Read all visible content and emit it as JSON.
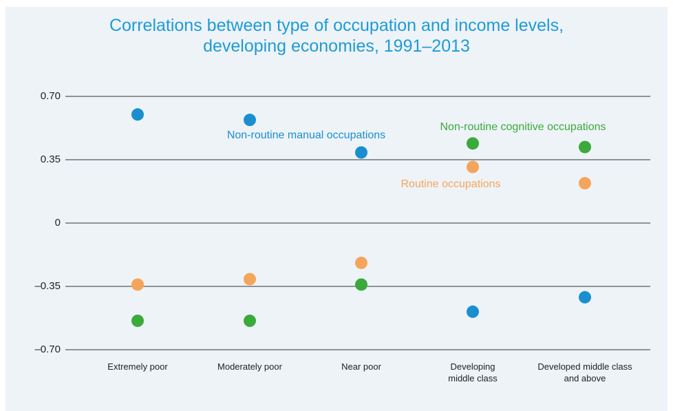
{
  "chart_data": {
    "type": "dot",
    "title": "Correlations between type of occupation and income levels,\ndeveloping economies, 1991–2013",
    "categories": [
      "Extremely poor",
      "Moderately poor",
      "Near poor",
      "Developing\nmiddle class",
      "Developed middle class\nand above"
    ],
    "series": [
      {
        "name": "Non-routine manual occupations",
        "color": "#1a8fd0",
        "values": [
          0.6,
          0.57,
          0.39,
          -0.49,
          -0.41
        ]
      },
      {
        "name": "Routine occupations",
        "color": "#f5a55a",
        "values": [
          -0.34,
          -0.31,
          -0.22,
          0.31,
          0.22
        ]
      },
      {
        "name": "Non-routine cognitive occupations",
        "color": "#3aaa3a",
        "values": [
          -0.54,
          -0.54,
          -0.34,
          0.44,
          0.42
        ]
      }
    ],
    "ylim": [
      -0.7,
      0.7
    ],
    "yticks": [
      {
        "value": 0.7,
        "label": "0.70"
      },
      {
        "value": 0.35,
        "label": "0.35"
      },
      0,
      {
        "value": -0.35,
        "label": "–0.35"
      },
      {
        "value": -0.7,
        "label": "–0.70"
      }
    ],
    "grid": true
  }
}
